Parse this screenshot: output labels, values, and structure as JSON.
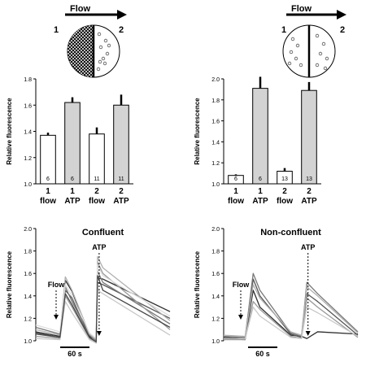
{
  "figure": {
    "left_diagram": {
      "flow_label": "Flow",
      "side_a": "1",
      "side_b": "2"
    },
    "right_diagram": {
      "flow_label": "Flow",
      "side_a": "1",
      "side_b": "2"
    },
    "colors": {
      "white_bar": "#ffffff",
      "atp_bar": "#d3d3d3",
      "dark_trace": "#2e2e2e",
      "mid_trace": "#808080",
      "light_trace": "#c8c8c8"
    }
  },
  "chart_data": [
    {
      "type": "bar",
      "panel": "top-left",
      "ylabel": "Relative fluorescence",
      "ylim": [
        1.0,
        1.8
      ],
      "ticks": [
        "1.0",
        "1.2",
        "1.4",
        "1.6",
        "1.8"
      ],
      "categories": [
        {
          "top": "1",
          "bottom": "flow",
          "value": 1.37,
          "err": 0.02,
          "n": "6",
          "color": "#ffffff"
        },
        {
          "top": "1",
          "bottom": "ATP",
          "value": 1.62,
          "err": 0.04,
          "n": "6",
          "color": "#d3d3d3"
        },
        {
          "top": "2",
          "bottom": "flow",
          "value": 1.38,
          "err": 0.05,
          "n": "11",
          "color": "#ffffff"
        },
        {
          "top": "2",
          "bottom": "ATP",
          "value": 1.6,
          "err": 0.08,
          "n": "11",
          "color": "#d3d3d3"
        }
      ]
    },
    {
      "type": "bar",
      "panel": "top-right",
      "ylabel": "Relative fluorescence",
      "ylim": [
        1.0,
        2.0
      ],
      "ticks": [
        "1.0",
        "1.2",
        "1.4",
        "1.6",
        "1.8",
        "2.0"
      ],
      "categories": [
        {
          "top": "1",
          "bottom": "flow",
          "value": 1.08,
          "err": 0.01,
          "n": "6",
          "color": "#ffffff"
        },
        {
          "top": "1",
          "bottom": "ATP",
          "value": 1.91,
          "err": 0.11,
          "n": "6",
          "color": "#d3d3d3"
        },
        {
          "top": "2",
          "bottom": "flow",
          "value": 1.12,
          "err": 0.03,
          "n": "13",
          "color": "#ffffff"
        },
        {
          "top": "2",
          "bottom": "ATP",
          "value": 1.89,
          "err": 0.08,
          "n": "13",
          "color": "#d3d3d3"
        }
      ]
    },
    {
      "type": "line",
      "panel": "bottom-left",
      "title": "Confluent",
      "ylabel": "Relative fluorescence",
      "ylim": [
        1.0,
        2.0
      ],
      "ticks": [
        "1.0",
        "1.2",
        "1.4",
        "1.6",
        "1.8",
        "2.0"
      ],
      "xlim": [
        0,
        1
      ],
      "annotations": {
        "flow": "Flow",
        "atp": "ATP",
        "scale": "60 s"
      },
      "series": [
        {
          "color": "#2e2e2e",
          "x": [
            0,
            0.18,
            0.22,
            0.27,
            0.4,
            0.45,
            0.46,
            0.5,
            1.0
          ],
          "y": [
            1.08,
            1.04,
            1.54,
            1.44,
            1.04,
            0.98,
            1.56,
            1.55,
            1.26
          ]
        },
        {
          "color": "#555555",
          "x": [
            0,
            0.18,
            0.22,
            0.27,
            0.4,
            0.45,
            0.46,
            0.5,
            1.0
          ],
          "y": [
            1.06,
            1.03,
            1.45,
            1.38,
            1.03,
            0.99,
            1.52,
            1.5,
            1.2
          ]
        },
        {
          "color": "#777777",
          "x": [
            0,
            0.18,
            0.22,
            0.27,
            0.4,
            0.45,
            0.46,
            0.5,
            1.0
          ],
          "y": [
            1.12,
            1.06,
            1.48,
            1.35,
            1.05,
            1.0,
            1.62,
            1.52,
            1.15
          ]
        },
        {
          "color": "#999999",
          "x": [
            0,
            0.18,
            0.22,
            0.27,
            0.4,
            0.45,
            0.46,
            0.5,
            1.0
          ],
          "y": [
            1.04,
            1.02,
            1.4,
            1.3,
            1.02,
            0.99,
            1.7,
            1.6,
            1.1
          ]
        },
        {
          "color": "#b0b0b0",
          "x": [
            0,
            0.18,
            0.22,
            0.27,
            0.4,
            0.45,
            0.46,
            0.5,
            1.0
          ],
          "y": [
            1.1,
            1.05,
            1.57,
            1.45,
            1.06,
            1.01,
            1.75,
            1.65,
            1.18
          ]
        },
        {
          "color": "#c8c8c8",
          "x": [
            0,
            0.18,
            0.22,
            0.27,
            0.4,
            0.45,
            0.46,
            0.5,
            1.0
          ],
          "y": [
            1.02,
            1.01,
            1.35,
            1.25,
            1.01,
            0.98,
            1.45,
            1.42,
            1.05
          ]
        },
        {
          "color": "#dddddd",
          "x": [
            0,
            0.18,
            0.22,
            0.27,
            0.4,
            0.45,
            0.46,
            0.5,
            1.0
          ],
          "y": [
            1.14,
            1.08,
            1.5,
            1.4,
            1.07,
            1.02,
            1.68,
            1.58,
            1.22
          ]
        },
        {
          "color": "#444444",
          "x": [
            0,
            0.18,
            0.22,
            0.27,
            0.4,
            0.45,
            0.46,
            0.5,
            1.0
          ],
          "y": [
            1.07,
            1.03,
            1.42,
            1.32,
            1.03,
            0.99,
            1.58,
            1.45,
            1.12
          ]
        }
      ]
    },
    {
      "type": "line",
      "panel": "bottom-right",
      "title": "Non-confluent",
      "ylabel": "Relative fluorescence",
      "ylim": [
        1.0,
        2.0
      ],
      "ticks": [
        "1.0",
        "1.2",
        "1.4",
        "1.6",
        "1.8",
        "2.0"
      ],
      "xlim": [
        0,
        1
      ],
      "annotations": {
        "flow": "Flow",
        "atp": "ATP",
        "scale": "60 s"
      },
      "series": [
        {
          "color": "#2e2e2e",
          "x": [
            0,
            0.16,
            0.22,
            0.27,
            0.5,
            0.58,
            0.62,
            0.7,
            1.0
          ],
          "y": [
            1.03,
            1.02,
            1.45,
            1.3,
            1.05,
            1.04,
            1.02,
            1.08,
            1.06
          ]
        },
        {
          "color": "#555555",
          "x": [
            0,
            0.16,
            0.22,
            0.27,
            0.5,
            0.58,
            0.62,
            0.7,
            1.0
          ],
          "y": [
            1.02,
            1.01,
            1.55,
            1.4,
            1.06,
            1.03,
            1.42,
            1.35,
            1.05
          ]
        },
        {
          "color": "#777777",
          "x": [
            0,
            0.16,
            0.22,
            0.27,
            0.5,
            0.58,
            0.62,
            0.7,
            1.0
          ],
          "y": [
            1.04,
            1.03,
            1.6,
            1.45,
            1.07,
            1.04,
            1.52,
            1.42,
            1.08
          ]
        },
        {
          "color": "#999999",
          "x": [
            0,
            0.16,
            0.22,
            0.27,
            0.5,
            0.58,
            0.62,
            0.7,
            1.0
          ],
          "y": [
            1.01,
            1.01,
            1.35,
            1.28,
            1.04,
            1.02,
            1.38,
            1.3,
            1.03
          ]
        },
        {
          "color": "#b0b0b0",
          "x": [
            0,
            0.16,
            0.22,
            0.27,
            0.5,
            0.58,
            0.62,
            0.7,
            1.0
          ],
          "y": [
            1.05,
            1.04,
            1.5,
            1.38,
            1.08,
            1.05,
            1.48,
            1.4,
            1.07
          ]
        },
        {
          "color": "#c8c8c8",
          "x": [
            0,
            0.16,
            0.22,
            0.27,
            0.5,
            0.58,
            0.62,
            0.7,
            1.0
          ],
          "y": [
            1.02,
            1.02,
            1.3,
            1.22,
            1.03,
            1.02,
            1.3,
            1.25,
            1.04
          ]
        }
      ]
    }
  ]
}
